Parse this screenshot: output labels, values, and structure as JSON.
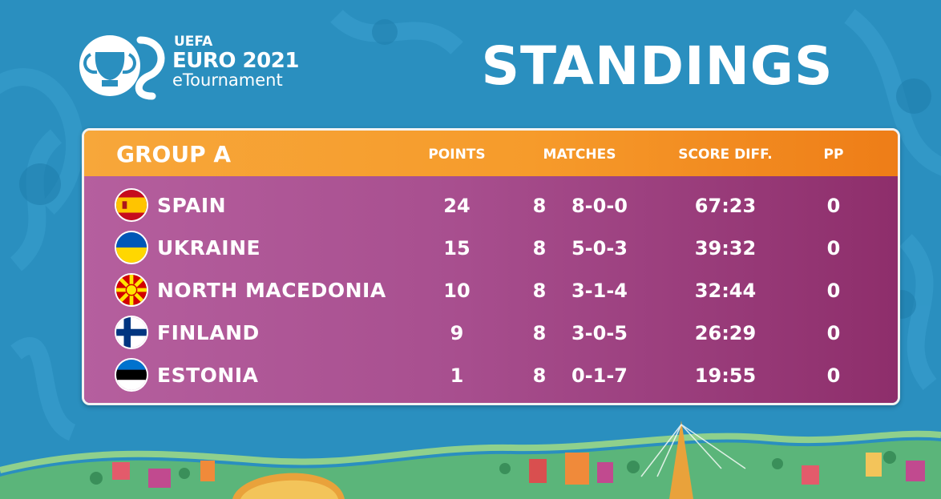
{
  "logo": {
    "org": "UEFA",
    "event": "EURO 2021",
    "subtitle": "eTournament"
  },
  "title": "STANDINGS",
  "table": {
    "group": "GROUP A",
    "columns": {
      "points": "POINTS",
      "matches": "MATCHES",
      "score_diff": "SCORE DIFF.",
      "pp": "PP"
    },
    "rows": [
      {
        "team": "SPAIN",
        "flag": "spain-flag-icon",
        "points": "24",
        "played": "8",
        "record": "8-0-0",
        "score": "67:23",
        "pp": "0"
      },
      {
        "team": "UKRAINE",
        "flag": "ukraine-flag-icon",
        "points": "15",
        "played": "8",
        "record": "5-0-3",
        "score": "39:32",
        "pp": "0"
      },
      {
        "team": "NORTH MACEDONIA",
        "flag": "north-macedonia-flag-icon",
        "points": "10",
        "played": "8",
        "record": "3-1-4",
        "score": "32:44",
        "pp": "0"
      },
      {
        "team": "FINLAND",
        "flag": "finland-flag-icon",
        "points": "9",
        "played": "8",
        "record": "3-0-5",
        "score": "26:29",
        "pp": "0"
      },
      {
        "team": "ESTONIA",
        "flag": "estonia-flag-icon",
        "points": "1",
        "played": "8",
        "record": "0-1-7",
        "score": "19:55",
        "pp": "0"
      }
    ]
  },
  "colors": {
    "background": "#2a8fbf",
    "header": "#f69b2b",
    "body": "#a84f8f"
  }
}
